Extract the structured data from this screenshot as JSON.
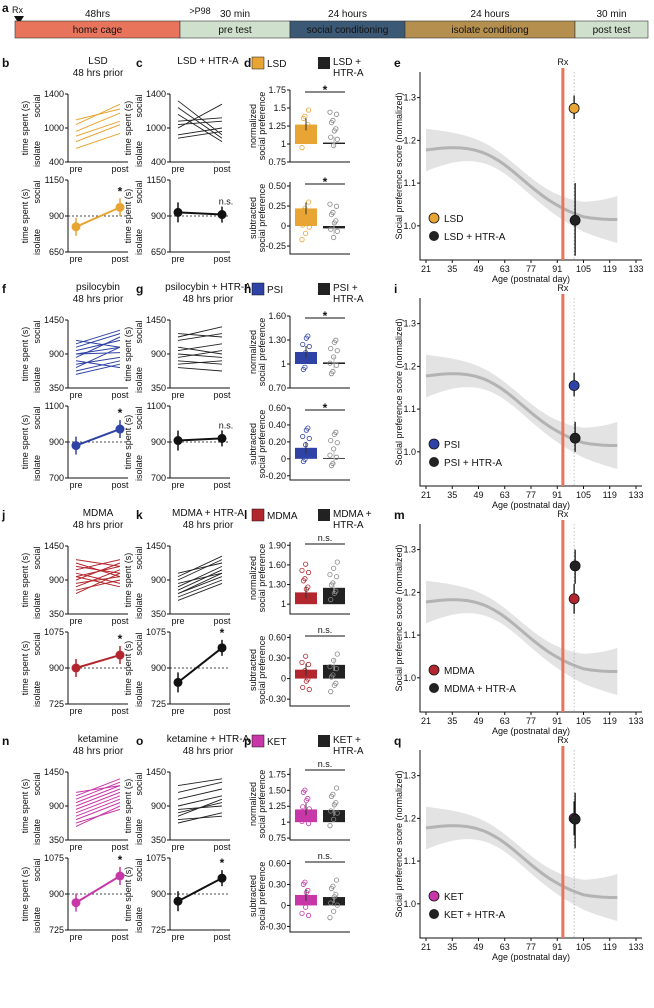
{
  "timeline": {
    "rx": "Rx",
    "p98": ">P98",
    "phases": [
      {
        "top": "48hrs",
        "label": "home cage",
        "color": "#e8745c"
      },
      {
        "top": "30 min",
        "label": "pre test",
        "color": "#cfe0cc"
      },
      {
        "top": "24 hours",
        "label": "social conditioning",
        "color": "#3b5874"
      },
      {
        "top": "24 hours",
        "label": "isolate conditiong",
        "color": "#b58f4e"
      },
      {
        "top": "30 min",
        "label": "post test",
        "color": "#cfe0cc"
      }
    ]
  },
  "common": {
    "pre": "pre",
    "post": "post",
    "social": "social",
    "isolate": "isolate",
    "ts": "time spent (s)",
    "star": "*",
    "ns": "n.s.",
    "norm1": "normalized",
    "norm2": "social preference",
    "sub1": "subtracted",
    "sub2": "social preference",
    "rx": "Rx",
    "age": "Age (postnatal day)",
    "spsy": "Social preference score (normalized)",
    "ageticks": [
      "21",
      "35",
      "49",
      "63",
      "77",
      "91",
      "105",
      "119",
      "133"
    ],
    "spticks": [
      "1.0",
      "1.1",
      "1.2",
      "1.3"
    ]
  },
  "rows": [
    {
      "letters": [
        "b",
        "c",
        "d",
        "e"
      ],
      "color": "#e8a534",
      "drug": "LSD",
      "drugHtr": "LSD + HTR-A",
      "hours": "48 hrs prior",
      "legendA": "LSD",
      "legendB1": "LSD +",
      "legendB2": "HTR-A",
      "eLegA": "LSD",
      "eLegB": "LSD + HTR-A",
      "top_ticks": [
        "1400",
        "1000",
        "400"
      ],
      "bot_ticks": [
        "1150",
        "900",
        "650"
      ],
      "norm_ticks": [
        "1.75",
        "1.5",
        "1.25",
        "1",
        "0.75"
      ],
      "sub_ticks": [
        "0.50",
        "0.25",
        "0",
        "-0.25"
      ],
      "bLines": [
        [
          0.45,
          0.72
        ],
        [
          0.55,
          0.85
        ],
        [
          0.62,
          0.78
        ],
        [
          0.3,
          0.55
        ],
        [
          0.2,
          0.42
        ],
        [
          0.38,
          0.6
        ]
      ],
      "cLines": [
        [
          0.8,
          0.35
        ],
        [
          0.55,
          0.6
        ],
        [
          0.4,
          0.5
        ],
        [
          0.7,
          0.3
        ],
        [
          0.6,
          0.65
        ],
        [
          0.35,
          0.45
        ],
        [
          0.9,
          0.4
        ],
        [
          0.5,
          0.85
        ]
      ],
      "drugPre": 0.35,
      "drugPost": 0.62,
      "drugStar": true,
      "htrPre": 0.55,
      "htrPost": 0.52,
      "htrStar": false,
      "normBars": [
        1.27,
        1.02
      ],
      "subBars": [
        0.22,
        -0.03
      ],
      "normStar": true,
      "subStar": true,
      "normRange": [
        0.75,
        1.75
      ],
      "subRange": [
        -0.35,
        0.55
      ],
      "scoreA": 1.275,
      "scoreB": 1.013,
      "errA": [
        1.25,
        1.305
      ],
      "errB": [
        0.93,
        1.1
      ]
    },
    {
      "letters": [
        "f",
        "g",
        "h",
        "i"
      ],
      "color": "#2f42a5",
      "drug": "psilocybin",
      "drugHtr": "psilocybin + HTR-A",
      "hours": "48 hrs prior",
      "legendA": "PSI",
      "legendB1": "PSI +",
      "legendB2": "HTR-A",
      "eLegA": "PSI",
      "eLegB": "PSI + HTR-A",
      "top_ticks": [
        "1450",
        "900",
        "350"
      ],
      "bot_ticks": [
        "1100",
        "900",
        "700"
      ],
      "norm_ticks": [
        "1.60",
        "1.30",
        "1",
        "0.70"
      ],
      "sub_ticks": [
        "0.60",
        "0.40",
        "0.20",
        "0",
        "-0.20"
      ],
      "bLines": [
        [
          0.3,
          0.6
        ],
        [
          0.45,
          0.75
        ],
        [
          0.5,
          0.52
        ],
        [
          0.25,
          0.4
        ],
        [
          0.6,
          0.8
        ],
        [
          0.35,
          0.45
        ],
        [
          0.4,
          0.3
        ],
        [
          0.7,
          0.6
        ],
        [
          0.55,
          0.7
        ],
        [
          0.2,
          0.35
        ],
        [
          0.65,
          0.85
        ],
        [
          0.5,
          0.6
        ]
      ],
      "cLines": [
        [
          0.7,
          0.8
        ],
        [
          0.4,
          0.35
        ],
        [
          0.55,
          0.65
        ],
        [
          0.3,
          0.25
        ],
        [
          0.8,
          0.75
        ],
        [
          0.6,
          0.5
        ],
        [
          0.45,
          0.55
        ],
        [
          0.35,
          0.4
        ],
        [
          0.75,
          0.9
        ],
        [
          0.5,
          0.45
        ]
      ],
      "drugPre": 0.45,
      "drugPost": 0.68,
      "drugStar": true,
      "htrPre": 0.52,
      "htrPost": 0.55,
      "htrStar": false,
      "normBars": [
        1.15,
        1.02
      ],
      "subBars": [
        0.13,
        0.01
      ],
      "normStar": true,
      "subStar": true,
      "normRange": [
        0.7,
        1.6
      ],
      "subRange": [
        -0.25,
        0.6
      ],
      "scoreA": 1.155,
      "scoreB": 1.032,
      "errA": [
        1.13,
        1.185
      ],
      "errB": [
        1.0,
        1.07
      ]
    },
    {
      "letters": [
        "j",
        "k",
        "l",
        "m"
      ],
      "color": "#b3262e",
      "drug": "MDMA",
      "drugHtr": "MDMA + HTR-A",
      "hours": "48 hrs prior",
      "legendA": "MDMA",
      "legendB1": "MDMA +",
      "legendB2": "HTR-A",
      "eLegA": "MDMA",
      "eLegB": "MDMA + HTR-A",
      "top_ticks": [
        "1450",
        "900",
        "350"
      ],
      "bot_ticks": [
        "1075",
        "900",
        "725"
      ],
      "norm_ticks": [
        "1.90",
        "1.60",
        "1.30",
        "1"
      ],
      "sub_ticks": [
        "0.60",
        "0.30",
        "0",
        "-0.30"
      ],
      "bLines": [
        [
          0.55,
          0.7
        ],
        [
          0.7,
          0.6
        ],
        [
          0.4,
          0.65
        ],
        [
          0.6,
          0.45
        ],
        [
          0.35,
          0.5
        ],
        [
          0.8,
          0.7
        ],
        [
          0.5,
          0.75
        ],
        [
          0.45,
          0.55
        ],
        [
          0.65,
          0.8
        ],
        [
          0.3,
          0.6
        ],
        [
          0.75,
          0.55
        ],
        [
          0.55,
          0.4
        ]
      ],
      "cLines": [
        [
          0.3,
          0.55
        ],
        [
          0.4,
          0.7
        ],
        [
          0.5,
          0.8
        ],
        [
          0.25,
          0.5
        ],
        [
          0.35,
          0.65
        ],
        [
          0.55,
          0.85
        ],
        [
          0.45,
          0.6
        ],
        [
          0.2,
          0.45
        ],
        [
          0.6,
          0.75
        ],
        [
          0.3,
          0.6
        ]
      ],
      "drugPre": 0.5,
      "drugPost": 0.68,
      "drugStar": true,
      "htrPre": 0.3,
      "htrPost": 0.78,
      "htrStar": true,
      "normBars": [
        1.18,
        1.25
      ],
      "subBars": [
        0.13,
        0.2
      ],
      "normStar": false,
      "subStar": false,
      "normRange": [
        0.85,
        1.95
      ],
      "subRange": [
        -0.4,
        0.65
      ],
      "scoreA": 1.185,
      "scoreB": 1.262,
      "errA": [
        1.15,
        1.22
      ],
      "errB": [
        1.22,
        1.3
      ]
    },
    {
      "letters": [
        "n",
        "o",
        "p",
        "q"
      ],
      "color": "#c837a8",
      "drug": "ketamine",
      "drugHtr": "ketamine + HTR-A",
      "hours": "48 hrs prior",
      "legendA": "KET",
      "legendB1": "KET +",
      "legendB2": "HTR-A",
      "eLegA": "KET",
      "eLegB": "KET + HTR-A",
      "top_ticks": [
        "1450",
        "900",
        "350"
      ],
      "bot_ticks": [
        "1075",
        "900",
        "725"
      ],
      "norm_ticks": [
        "1.75",
        "1.50",
        "1.25",
        "1",
        "0.75"
      ],
      "sub_ticks": [
        "0.60",
        "0.30",
        "0",
        "-0.30"
      ],
      "bLines": [
        [
          0.55,
          0.8
        ],
        [
          0.4,
          0.65
        ],
        [
          0.3,
          0.55
        ],
        [
          0.6,
          0.85
        ],
        [
          0.45,
          0.7
        ],
        [
          0.2,
          0.5
        ],
        [
          0.5,
          0.75
        ],
        [
          0.65,
          0.9
        ],
        [
          0.35,
          0.6
        ],
        [
          0.25,
          0.45
        ],
        [
          0.7,
          0.8
        ]
      ],
      "cLines": [
        [
          0.6,
          0.75
        ],
        [
          0.4,
          0.55
        ],
        [
          0.3,
          0.35
        ],
        [
          0.7,
          0.85
        ],
        [
          0.5,
          0.65
        ],
        [
          0.25,
          0.4
        ],
        [
          0.8,
          0.9
        ],
        [
          0.45,
          0.5
        ],
        [
          0.35,
          0.6
        ]
      ],
      "drugPre": 0.38,
      "drugPost": 0.75,
      "drugStar": true,
      "htrPre": 0.4,
      "htrPost": 0.72,
      "htrStar": true,
      "normBars": [
        1.2,
        1.19
      ],
      "subBars": [
        0.15,
        0.12
      ],
      "normStar": false,
      "subStar": false,
      "normRange": [
        0.72,
        1.85
      ],
      "subRange": [
        -0.38,
        0.65
      ],
      "scoreA": 1.2,
      "scoreB": 1.198,
      "errA": [
        1.16,
        1.24
      ],
      "errB": [
        1.13,
        1.26
      ]
    }
  ]
}
